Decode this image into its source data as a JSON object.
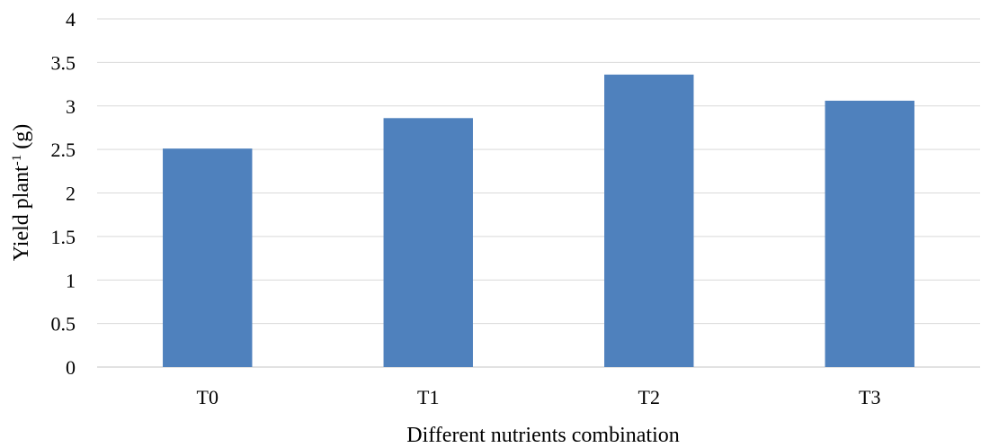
{
  "chart_data": {
    "type": "bar",
    "categories": [
      "T0",
      "T1",
      "T2",
      "T3"
    ],
    "values": [
      2.51,
      2.86,
      3.36,
      3.06
    ],
    "ylim": [
      0,
      4
    ],
    "yticks": [
      "0",
      "0.5",
      "1",
      "1.5",
      "2",
      "2.5",
      "3",
      "3.5",
      "4"
    ],
    "xlabel": "Different nutrients combination",
    "ylabel": {
      "prefix": "Yield plant",
      "superscript": "-1",
      "suffix": " (g)"
    },
    "grid": true,
    "legend": "none",
    "bar_color": "#4f81bd"
  }
}
